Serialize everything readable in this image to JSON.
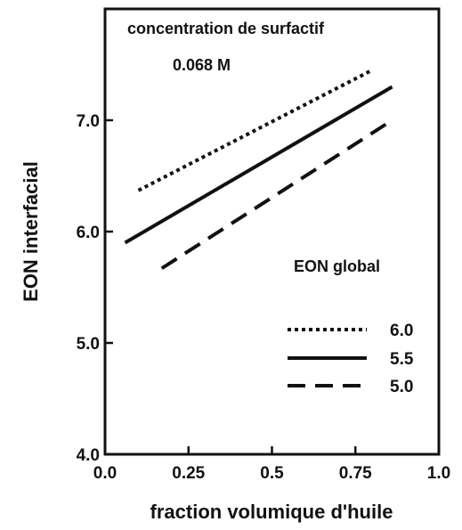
{
  "chart_data": {
    "type": "line",
    "xlabel": "fraction volumique d'huile",
    "ylabel": "EON interfacial",
    "xlim": [
      0.0,
      1.0
    ],
    "ylim": [
      4.0,
      8.0
    ],
    "xticks": [
      "0.0",
      "0.25",
      "0.5",
      "0.75",
      "1.0"
    ],
    "yticks": [
      "4.0",
      "5.0",
      "6.0",
      "7.0"
    ],
    "annotation": [
      "concentration de surfactif",
      "0.068 M"
    ],
    "legend_title": "EON global",
    "legend_position": "bottom-right",
    "grid": false,
    "series": [
      {
        "name": "6.0",
        "style": "dotted",
        "x": [
          0.1,
          0.8
        ],
        "y": [
          6.37,
          7.45
        ]
      },
      {
        "name": "5.5",
        "style": "solid",
        "x": [
          0.06,
          0.86
        ],
        "y": [
          5.9,
          7.3
        ]
      },
      {
        "name": "5.0",
        "style": "dashed",
        "x": [
          0.17,
          0.86
        ],
        "y": [
          5.67,
          7.0
        ]
      }
    ]
  }
}
